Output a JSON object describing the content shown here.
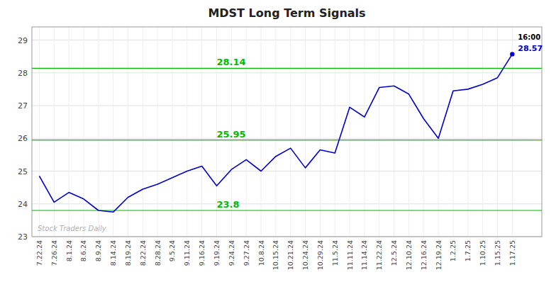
{
  "chart_data": {
    "type": "line",
    "title": "MDST Long Term Signals",
    "categories": [
      "7.22.24",
      "7.26.24",
      "8.1.24",
      "8.6.24",
      "8.9.24",
      "8.14.24",
      "8.19.24",
      "8.22.24",
      "8.28.24",
      "9.5.24",
      "9.11.24",
      "9.16.24",
      "9.19.24",
      "9.24.24",
      "9.27.24",
      "10.8.24",
      "10.15.24",
      "10.21.24",
      "10.24.24",
      "10.29.24",
      "11.5.24",
      "11.11.24",
      "11.14.24",
      "11.22.24",
      "12.5.24",
      "12.10.24",
      "12.16.24",
      "12.19.24",
      "1.2.25",
      "1.7.25",
      "1.10.25",
      "1.15.25",
      "1.17.25"
    ],
    "values": [
      24.85,
      24.05,
      24.35,
      24.15,
      23.8,
      23.75,
      24.2,
      24.45,
      24.6,
      24.8,
      25.0,
      25.15,
      24.55,
      25.05,
      25.35,
      25.0,
      25.45,
      25.7,
      25.1,
      25.65,
      25.55,
      26.95,
      26.65,
      27.55,
      27.6,
      27.35,
      26.6,
      26.0,
      27.45,
      27.5,
      27.65,
      27.85,
      28.57
    ],
    "color": "#0000cc",
    "reference_lines": {
      "values": [
        23.8,
        25.95,
        28.14
      ],
      "color": "#00bb00"
    },
    "annotations": [
      "16:00",
      "28.57",
      "Stock Traders Daily"
    ],
    "ylim": [
      23.0,
      29.4
    ],
    "yticks": [
      23,
      24,
      25,
      26,
      27,
      28,
      29
    ],
    "grid": true
  }
}
